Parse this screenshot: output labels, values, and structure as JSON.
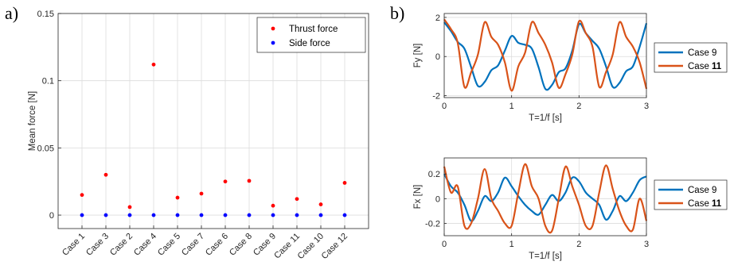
{
  "panel_labels": {
    "a": "a)",
    "b": "b)"
  },
  "chart_data": [
    {
      "type": "scatter",
      "ylabel": "Mean force [N]",
      "xlabel": "",
      "ylim": [
        -0.01,
        0.15
      ],
      "yticks": [
        0,
        0.05,
        0.1,
        0.15
      ],
      "ytick_labels": [
        "0",
        "0.05",
        "0.1",
        "0.15"
      ],
      "categories": [
        "Case 1",
        "Case 3",
        "Case 2",
        "Case 4",
        "Case 5",
        "Case 7",
        "Case 6",
        "Case 8",
        "Case 9",
        "Case 11",
        "Case 10",
        "Case 12"
      ],
      "grid": true,
      "legend_position": "top-right",
      "series": [
        {
          "name": "Thrust force",
          "color": "#ff0000",
          "values": [
            0.015,
            0.03,
            0.006,
            0.112,
            0.013,
            0.016,
            0.025,
            0.0255,
            0.007,
            0.012,
            0.008,
            0.024
          ]
        },
        {
          "name": "Side force",
          "color": "#0000ff",
          "values": [
            0,
            0,
            0,
            0,
            0,
            0,
            0,
            0,
            0,
            0,
            0,
            0
          ]
        }
      ]
    },
    {
      "type": "line",
      "ylabel": "Fy [N]",
      "xlabel": "T=1/f [s]",
      "xlim": [
        0,
        3
      ],
      "ylim": [
        -2.1,
        2.2
      ],
      "xticks": [
        0,
        1,
        2,
        3
      ],
      "yticks": [
        -2,
        0,
        2
      ],
      "grid": true,
      "legend_position": "outside-right",
      "series": [
        {
          "name_prefix": "Case",
          "name_suffix": "9",
          "color": "#0072bd",
          "x": [
            0,
            0.1,
            0.2,
            0.3,
            0.4,
            0.5,
            0.6,
            0.7,
            0.8,
            0.9,
            1.0,
            1.1,
            1.2,
            1.3,
            1.4,
            1.5,
            1.6,
            1.7,
            1.8,
            1.9,
            2.0,
            2.1,
            2.2,
            2.3,
            2.4,
            2.5,
            2.6,
            2.7,
            2.8,
            2.9,
            3.0
          ],
          "y": [
            1.75,
            1.3,
            0.75,
            0.4,
            -0.55,
            -1.5,
            -1.3,
            -0.7,
            -0.45,
            0.3,
            1.05,
            0.7,
            0.6,
            0.4,
            -0.55,
            -1.65,
            -1.45,
            -0.8,
            -0.6,
            0.3,
            1.65,
            1.2,
            0.8,
            0.4,
            -0.5,
            -1.55,
            -1.35,
            -0.75,
            -0.5,
            0.5,
            1.7
          ]
        },
        {
          "name_prefix": "Case",
          "name_suffix": "11",
          "color": "#d95319",
          "x": [
            0,
            0.1,
            0.2,
            0.3,
            0.4,
            0.5,
            0.6,
            0.7,
            0.8,
            0.9,
            1.0,
            1.1,
            1.2,
            1.3,
            1.4,
            1.5,
            1.6,
            1.7,
            1.8,
            1.9,
            2.0,
            2.1,
            2.2,
            2.3,
            2.4,
            2.5,
            2.6,
            2.7,
            2.8,
            2.9,
            3.0
          ],
          "y": [
            1.9,
            1.4,
            0.7,
            -1.55,
            -0.8,
            0.1,
            1.75,
            1.0,
            0.6,
            -0.3,
            -1.75,
            -0.5,
            0.2,
            1.75,
            1.2,
            0.6,
            -0.3,
            -1.6,
            -0.9,
            0.1,
            1.8,
            1.2,
            0.5,
            -1.55,
            -0.8,
            0.1,
            1.75,
            1.0,
            0.5,
            -0.3,
            -1.65
          ]
        }
      ]
    },
    {
      "type": "line",
      "ylabel": "Fx [N]",
      "xlabel": "T=1/f [s]",
      "xlim": [
        0,
        3
      ],
      "ylim": [
        -0.3,
        0.33
      ],
      "xticks": [
        0,
        1,
        2,
        3
      ],
      "yticks": [
        -0.2,
        0,
        0.2
      ],
      "ytick_labels": [
        "-0.2",
        "0",
        "0.2"
      ],
      "grid": true,
      "legend_position": "outside-right",
      "series": [
        {
          "name_prefix": "Case",
          "name_suffix": "9",
          "color": "#0072bd",
          "x": [
            0,
            0.1,
            0.2,
            0.3,
            0.4,
            0.5,
            0.6,
            0.7,
            0.8,
            0.9,
            1.0,
            1.1,
            1.2,
            1.3,
            1.4,
            1.5,
            1.6,
            1.7,
            1.8,
            1.9,
            2.0,
            2.1,
            2.2,
            2.3,
            2.4,
            2.5,
            2.6,
            2.7,
            2.8,
            2.9,
            3.0
          ],
          "y": [
            0.2,
            0.1,
            0.05,
            -0.05,
            -0.18,
            -0.1,
            0.02,
            -0.02,
            0.05,
            0.17,
            0.1,
            0.02,
            -0.05,
            -0.1,
            -0.13,
            -0.05,
            0.03,
            -0.02,
            0.05,
            0.17,
            0.14,
            0.05,
            0.0,
            -0.05,
            -0.17,
            -0.1,
            0.02,
            -0.02,
            0.05,
            0.15,
            0.18
          ]
        },
        {
          "name_prefix": "Case",
          "name_suffix": "11",
          "color": "#d95319",
          "x": [
            0,
            0.1,
            0.2,
            0.3,
            0.4,
            0.5,
            0.6,
            0.7,
            0.8,
            0.9,
            1.0,
            1.1,
            1.2,
            1.3,
            1.4,
            1.5,
            1.6,
            1.7,
            1.8,
            1.9,
            2.0,
            2.1,
            2.2,
            2.3,
            2.4,
            2.5,
            2.6,
            2.7,
            2.8,
            2.9,
            3.0
          ],
          "y": [
            0.26,
            0.05,
            0.1,
            -0.22,
            -0.2,
            0.0,
            0.24,
            0.0,
            -0.1,
            -0.2,
            -0.22,
            0.05,
            0.28,
            0.1,
            0.0,
            -0.22,
            -0.26,
            0.0,
            0.26,
            0.1,
            -0.05,
            -0.22,
            -0.22,
            0.05,
            0.27,
            0.08,
            -0.1,
            -0.22,
            -0.25,
            0.0,
            -0.18
          ]
        }
      ]
    }
  ]
}
